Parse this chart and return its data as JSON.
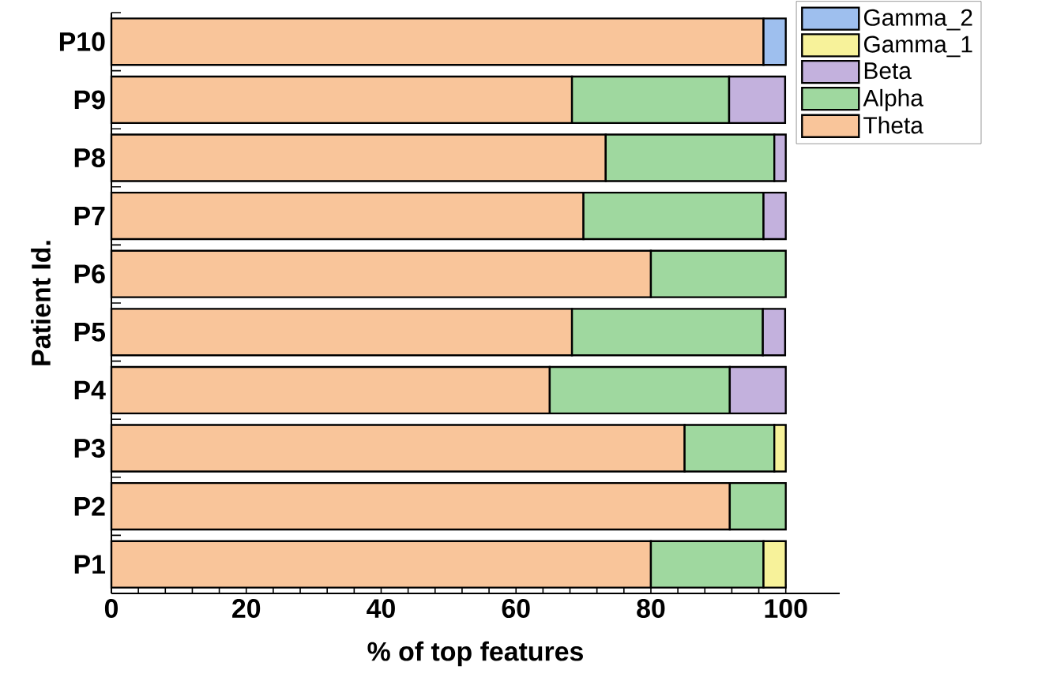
{
  "chart_data": {
    "type": "bar",
    "orientation": "horizontal",
    "stacked": true,
    "xlabel": "% of top features",
    "ylabel": "Patient Id.",
    "categories": [
      "P10",
      "P9",
      "P8",
      "P7",
      "P6",
      "P5",
      "P4",
      "P3",
      "P2",
      "P1"
    ],
    "xlim": [
      0,
      108
    ],
    "xticks": [
      0,
      20,
      40,
      60,
      80,
      100
    ],
    "legend": "top right",
    "series": [
      {
        "name": "Theta",
        "color": "#f9c59a",
        "values": [
          96.7,
          68.3,
          73.3,
          70,
          80,
          68.3,
          65,
          85,
          91.7,
          80
        ]
      },
      {
        "name": "Alpha",
        "color": "#9fd89f",
        "values": [
          null,
          23.3,
          25,
          26.7,
          20,
          28.3,
          26.7,
          13.3,
          8.3,
          16.7
        ]
      },
      {
        "name": "Beta",
        "color": "#c3b1dd",
        "values": [
          null,
          8.3,
          1.7,
          3.3,
          null,
          3.3,
          8.3,
          null,
          null,
          null
        ]
      },
      {
        "name": "Gamma_1",
        "color": "#f7f29a",
        "values": [
          null,
          null,
          null,
          null,
          null,
          null,
          null,
          1.7,
          null,
          3.3
        ]
      },
      {
        "name": "Gamma_2",
        "color": "#9ebfee",
        "values": [
          3.3,
          null,
          null,
          null,
          null,
          null,
          null,
          null,
          null,
          null
        ]
      }
    ]
  }
}
